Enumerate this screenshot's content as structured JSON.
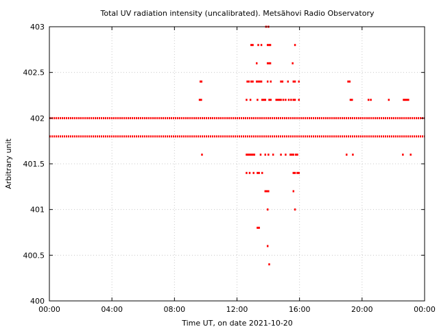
{
  "chart_data": {
    "type": "scatter",
    "title": "Total UV radiation intensity (uncalibrated). Metsähovi Radio Observatory",
    "xlabel": "Time UT, on date 2021-10-20",
    "ylabel": "Arbitrary unit",
    "xlim_hours": [
      0,
      24
    ],
    "ylim": [
      400,
      403
    ],
    "x_ticks": [
      {
        "hour": 0,
        "label": "00:00"
      },
      {
        "hour": 4,
        "label": "04:00"
      },
      {
        "hour": 8,
        "label": "08:00"
      },
      {
        "hour": 12,
        "label": "12:00"
      },
      {
        "hour": 16,
        "label": "16:00"
      },
      {
        "hour": 20,
        "label": "20:00"
      },
      {
        "hour": 24,
        "label": "00:00"
      }
    ],
    "y_ticks": [
      {
        "value": 400,
        "label": "400"
      },
      {
        "value": 400.5,
        "label": "400.5"
      },
      {
        "value": 401,
        "label": "401"
      },
      {
        "value": 401.5,
        "label": "401.5"
      },
      {
        "value": 402,
        "label": "402"
      },
      {
        "value": 402.5,
        "label": "402.5"
      },
      {
        "value": 403,
        "label": "403"
      }
    ],
    "grid": true,
    "marker_color": "#ff0000",
    "series": [
      {
        "bands": [
          {
            "y": 401.8,
            "x_start": 0.0,
            "x_end": 24.0
          },
          {
            "y": 402.0,
            "x_start": 0.0,
            "x_end": 24.0
          }
        ],
        "points": [
          {
            "x": 9.65,
            "y": 402.4
          },
          {
            "x": 9.72,
            "y": 402.4
          },
          {
            "x": 9.6,
            "y": 402.2
          },
          {
            "x": 9.7,
            "y": 402.2
          },
          {
            "x": 9.75,
            "y": 401.6
          },
          {
            "x": 12.9,
            "y": 402.8
          },
          {
            "x": 13.0,
            "y": 402.8
          },
          {
            "x": 13.35,
            "y": 402.8
          },
          {
            "x": 13.55,
            "y": 402.8
          },
          {
            "x": 13.95,
            "y": 402.8
          },
          {
            "x": 14.05,
            "y": 402.8
          },
          {
            "x": 14.12,
            "y": 402.8
          },
          {
            "x": 15.7,
            "y": 402.8
          },
          {
            "x": 13.85,
            "y": 403.0
          },
          {
            "x": 14.0,
            "y": 403.0
          },
          {
            "x": 13.25,
            "y": 402.6
          },
          {
            "x": 13.95,
            "y": 402.6
          },
          {
            "x": 14.05,
            "y": 402.6
          },
          {
            "x": 14.12,
            "y": 402.6
          },
          {
            "x": 15.55,
            "y": 402.6
          },
          {
            "x": 12.65,
            "y": 402.4
          },
          {
            "x": 12.75,
            "y": 402.4
          },
          {
            "x": 12.9,
            "y": 402.4
          },
          {
            "x": 13.0,
            "y": 402.4
          },
          {
            "x": 13.25,
            "y": 402.4
          },
          {
            "x": 13.35,
            "y": 402.4
          },
          {
            "x": 13.45,
            "y": 402.4
          },
          {
            "x": 13.55,
            "y": 402.4
          },
          {
            "x": 13.95,
            "y": 402.4
          },
          {
            "x": 14.15,
            "y": 402.4
          },
          {
            "x": 14.8,
            "y": 402.4
          },
          {
            "x": 14.9,
            "y": 402.4
          },
          {
            "x": 15.25,
            "y": 402.4
          },
          {
            "x": 15.6,
            "y": 402.4
          },
          {
            "x": 15.7,
            "y": 402.4
          },
          {
            "x": 15.95,
            "y": 402.4
          },
          {
            "x": 19.1,
            "y": 402.4
          },
          {
            "x": 19.2,
            "y": 402.4
          },
          {
            "x": 12.6,
            "y": 402.2
          },
          {
            "x": 12.85,
            "y": 402.2
          },
          {
            "x": 13.3,
            "y": 402.2
          },
          {
            "x": 13.6,
            "y": 402.2
          },
          {
            "x": 13.7,
            "y": 402.2
          },
          {
            "x": 13.8,
            "y": 402.2
          },
          {
            "x": 14.05,
            "y": 402.2
          },
          {
            "x": 14.15,
            "y": 402.2
          },
          {
            "x": 14.5,
            "y": 402.2
          },
          {
            "x": 14.6,
            "y": 402.2
          },
          {
            "x": 14.7,
            "y": 402.2
          },
          {
            "x": 14.8,
            "y": 402.2
          },
          {
            "x": 14.95,
            "y": 402.2
          },
          {
            "x": 15.1,
            "y": 402.2
          },
          {
            "x": 15.3,
            "y": 402.2
          },
          {
            "x": 15.45,
            "y": 402.2
          },
          {
            "x": 15.6,
            "y": 402.2
          },
          {
            "x": 15.7,
            "y": 402.2
          },
          {
            "x": 15.95,
            "y": 402.2
          },
          {
            "x": 19.25,
            "y": 402.2
          },
          {
            "x": 19.35,
            "y": 402.2
          },
          {
            "x": 20.4,
            "y": 402.2
          },
          {
            "x": 20.55,
            "y": 402.2
          },
          {
            "x": 21.7,
            "y": 402.2
          },
          {
            "x": 22.65,
            "y": 402.2
          },
          {
            "x": 22.75,
            "y": 402.2
          },
          {
            "x": 22.85,
            "y": 402.2
          },
          {
            "x": 22.95,
            "y": 402.2
          },
          {
            "x": 12.6,
            "y": 401.6
          },
          {
            "x": 12.7,
            "y": 401.6
          },
          {
            "x": 12.8,
            "y": 401.6
          },
          {
            "x": 12.9,
            "y": 401.6
          },
          {
            "x": 13.0,
            "y": 401.6
          },
          {
            "x": 13.1,
            "y": 401.6
          },
          {
            "x": 13.5,
            "y": 401.6
          },
          {
            "x": 13.8,
            "y": 401.6
          },
          {
            "x": 14.0,
            "y": 401.6
          },
          {
            "x": 14.3,
            "y": 401.6
          },
          {
            "x": 14.8,
            "y": 401.6
          },
          {
            "x": 15.1,
            "y": 401.6
          },
          {
            "x": 15.4,
            "y": 401.6
          },
          {
            "x": 15.5,
            "y": 401.6
          },
          {
            "x": 15.6,
            "y": 401.6
          },
          {
            "x": 15.75,
            "y": 401.6
          },
          {
            "x": 15.85,
            "y": 401.6
          },
          {
            "x": 19.0,
            "y": 401.6
          },
          {
            "x": 19.4,
            "y": 401.6
          },
          {
            "x": 22.6,
            "y": 401.6
          },
          {
            "x": 23.1,
            "y": 401.6
          },
          {
            "x": 12.6,
            "y": 401.4
          },
          {
            "x": 12.8,
            "y": 401.4
          },
          {
            "x": 13.05,
            "y": 401.4
          },
          {
            "x": 13.3,
            "y": 401.4
          },
          {
            "x": 13.4,
            "y": 401.4
          },
          {
            "x": 13.6,
            "y": 401.4
          },
          {
            "x": 15.6,
            "y": 401.4
          },
          {
            "x": 15.7,
            "y": 401.4
          },
          {
            "x": 15.85,
            "y": 401.4
          },
          {
            "x": 15.95,
            "y": 401.4
          },
          {
            "x": 13.8,
            "y": 401.2
          },
          {
            "x": 13.9,
            "y": 401.2
          },
          {
            "x": 14.0,
            "y": 401.2
          },
          {
            "x": 15.6,
            "y": 401.2
          },
          {
            "x": 13.95,
            "y": 401.0
          },
          {
            "x": 15.7,
            "y": 401.0
          },
          {
            "x": 13.3,
            "y": 400.8
          },
          {
            "x": 13.4,
            "y": 400.8
          },
          {
            "x": 13.95,
            "y": 400.6
          },
          {
            "x": 14.05,
            "y": 400.4
          }
        ]
      }
    ]
  }
}
